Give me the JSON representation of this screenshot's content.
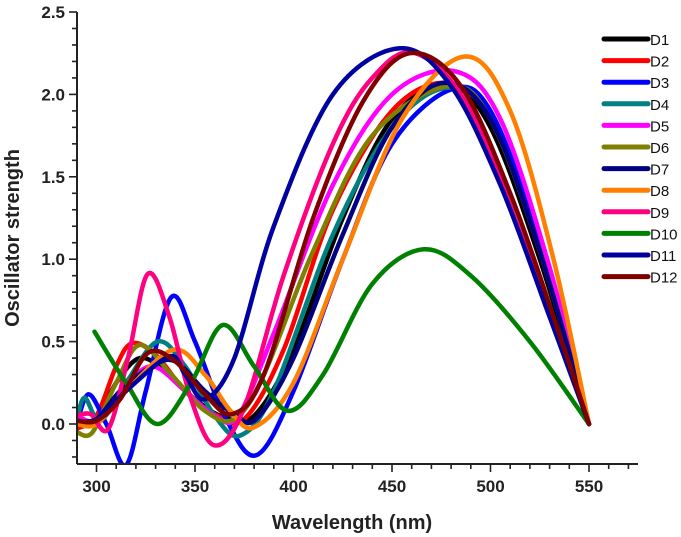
{
  "chart_data": {
    "type": "line",
    "title": "",
    "xlabel": "Wavelength (nm)",
    "ylabel": "Oscillator strength",
    "xlim": [
      290,
      575
    ],
    "ylim": [
      -0.25,
      2.5
    ],
    "x_ticks": [
      300,
      350,
      400,
      450,
      500,
      550
    ],
    "x_tick_labels": [
      "300",
      "350",
      "400",
      "450",
      "500",
      "550"
    ],
    "x_minor_step": 10,
    "y_ticks": [
      0.0,
      0.5,
      1.0,
      1.5,
      2.0,
      2.5
    ],
    "y_tick_labels": [
      "0.0",
      "0.5",
      "1.0",
      "1.5",
      "2.0",
      "2.5"
    ],
    "y_minor_step": 0.1,
    "grid": false,
    "legend_position": "top-right",
    "series": [
      {
        "name": "D1",
        "color": "#000000",
        "x": [
          290,
          300,
          310,
          322,
          335,
          350,
          365,
          380,
          400,
          425,
          450,
          478,
          500,
          525,
          550
        ],
        "y": [
          0.0,
          0.02,
          0.25,
          0.4,
          0.32,
          0.15,
          0.04,
          0.05,
          0.45,
          1.25,
          1.85,
          2.06,
          1.8,
          1.0,
          0.0
        ]
      },
      {
        "name": "D2",
        "color": "#ff0000",
        "x": [
          290,
          300,
          310,
          318,
          330,
          345,
          360,
          375,
          395,
          420,
          450,
          478,
          500,
          525,
          550
        ],
        "y": [
          -0.03,
          0.05,
          0.35,
          0.49,
          0.42,
          0.2,
          0.06,
          0.03,
          0.45,
          1.3,
          1.9,
          2.07,
          1.85,
          1.05,
          0.0
        ]
      },
      {
        "name": "D3",
        "color": "#0000ff",
        "x": [
          290,
          296,
          305,
          315,
          325,
          338,
          350,
          365,
          381,
          400,
          425,
          450,
          480,
          500,
          525,
          550
        ],
        "y": [
          0.0,
          0.18,
          0.0,
          -0.25,
          0.2,
          0.77,
          0.5,
          0.05,
          -0.19,
          0.2,
          1.0,
          1.7,
          2.03,
          1.9,
          1.1,
          0.0
        ]
      },
      {
        "name": "D4",
        "color": "#008080",
        "x": [
          290,
          294,
          302,
          315,
          331,
          345,
          360,
          373,
          390,
          420,
          450,
          478,
          500,
          525,
          550
        ],
        "y": [
          0.02,
          0.16,
          0.02,
          0.25,
          0.5,
          0.35,
          0.05,
          -0.07,
          0.2,
          1.15,
          1.8,
          2.04,
          1.85,
          1.05,
          0.0
        ]
      },
      {
        "name": "D5",
        "color": "#ff00ff",
        "x": [
          290,
          300,
          312,
          328,
          345,
          360,
          372,
          390,
          420,
          450,
          482,
          505,
          530,
          550
        ],
        "y": [
          0.05,
          0.02,
          0.2,
          0.35,
          0.2,
          0.05,
          0.05,
          0.55,
          1.45,
          2.0,
          2.14,
          1.85,
          0.95,
          0.0
        ]
      },
      {
        "name": "D6",
        "color": "#808000",
        "x": [
          290,
          298,
          310,
          322,
          338,
          355,
          370,
          385,
          410,
          440,
          478,
          500,
          525,
          550
        ],
        "y": [
          -0.05,
          -0.05,
          0.25,
          0.48,
          0.3,
          0.08,
          0.03,
          0.3,
          1.05,
          1.75,
          2.05,
          1.85,
          1.05,
          0.0
        ]
      },
      {
        "name": "D7",
        "color": "#000080",
        "x": [
          290,
          300,
          312,
          328,
          340,
          355,
          370,
          381,
          400,
          425,
          450,
          476,
          500,
          525,
          550
        ],
        "y": [
          0.02,
          0.03,
          0.2,
          0.35,
          0.38,
          0.2,
          0.06,
          0.03,
          0.4,
          1.15,
          1.8,
          2.07,
          1.85,
          1.05,
          0.0
        ]
      },
      {
        "name": "D8",
        "color": "#ff8000",
        "x": [
          290,
          300,
          315,
          339,
          355,
          368,
          380,
          400,
          425,
          455,
          487,
          510,
          532,
          550
        ],
        "y": [
          0.0,
          0.0,
          0.2,
          0.45,
          0.3,
          0.08,
          -0.02,
          0.25,
          1.0,
          1.85,
          2.23,
          1.9,
          1.0,
          0.0
        ]
      },
      {
        "name": "D9",
        "color": "#ff0080",
        "x": [
          290,
          297,
          306,
          316,
          326,
          337,
          348,
          360,
          375,
          395,
          420,
          440,
          462,
          490,
          520,
          550
        ],
        "y": [
          0.05,
          0.06,
          -0.03,
          0.4,
          0.91,
          0.65,
          0.15,
          -0.13,
          0.1,
          0.9,
          1.7,
          2.1,
          2.25,
          1.9,
          1.0,
          0.0
        ]
      },
      {
        "name": "D10",
        "color": "#008000",
        "x": [
          299,
          315,
          331,
          348,
          364,
          380,
          397,
          415,
          440,
          466,
          490,
          520,
          550
        ],
        "y": [
          0.56,
          0.25,
          0.0,
          0.25,
          0.6,
          0.35,
          0.08,
          0.3,
          0.85,
          1.06,
          0.9,
          0.5,
          0.0
        ]
      },
      {
        "name": "D11",
        "color": "#0000a0",
        "x": [
          290,
          300,
          315,
          337,
          345,
          355,
          370,
          390,
          420,
          454,
          480,
          505,
          530,
          550
        ],
        "y": [
          0.02,
          0.03,
          0.2,
          0.41,
          0.3,
          0.15,
          0.4,
          1.2,
          2.0,
          2.28,
          2.05,
          1.45,
          0.65,
          0.0
        ]
      },
      {
        "name": "D12",
        "color": "#800000",
        "x": [
          290,
          300,
          312,
          326,
          340,
          355,
          369,
          385,
          410,
          435,
          459,
          485,
          510,
          532,
          550
        ],
        "y": [
          0.02,
          0.02,
          0.15,
          0.43,
          0.38,
          0.18,
          0.06,
          0.3,
          1.25,
          1.95,
          2.25,
          2.05,
          1.4,
          0.65,
          0.0
        ]
      }
    ]
  }
}
